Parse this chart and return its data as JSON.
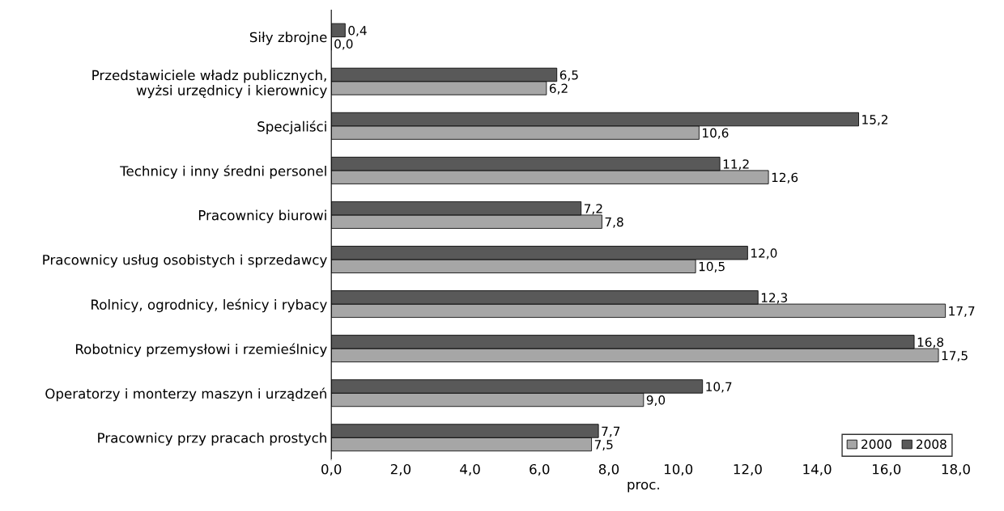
{
  "chart_data": {
    "type": "bar",
    "orientation": "horizontal",
    "xlabel": "proc.",
    "categories": [
      "Siły zbrojne",
      "Przedstawiciele władz publicznych,\nwyżsi urzędnicy i kierownicy",
      "Specjaliści",
      "Technicy i inny średni personel",
      "Pracownicy biurowi",
      "Pracownicy usług osobistych i sprzedawcy",
      "Rolnicy, ogrodnicy, leśnicy i rybacy",
      "Robotnicy przemysłowi i rzemieślnicy",
      "Operatorzy i monterzy maszyn i urządzeń",
      "Pracownicy przy pracach prostych"
    ],
    "series": [
      {
        "name": "2000",
        "color": "#a6a6a6",
        "values": [
          0.0,
          6.2,
          10.6,
          12.6,
          7.8,
          10.5,
          17.7,
          17.5,
          9.0,
          7.5
        ],
        "value_labels": [
          "0,0",
          "6,2",
          "10,6",
          "12,6",
          "7,8",
          "10,5",
          "17,7",
          "17,5",
          "9,0",
          "7,5"
        ]
      },
      {
        "name": "2008",
        "color": "#595959",
        "values": [
          0.4,
          6.5,
          15.2,
          11.2,
          7.2,
          12.0,
          12.3,
          16.8,
          10.7,
          7.7
        ],
        "value_labels": [
          "0,4",
          "6,5",
          "15,2",
          "11,2",
          "7,2",
          "12,0",
          "12,3",
          "16,8",
          "10,7",
          "7,7"
        ]
      }
    ],
    "xlim": [
      0,
      18
    ],
    "xticks": [
      {
        "value": 0,
        "label": "0,0"
      },
      {
        "value": 2,
        "label": "2,0"
      },
      {
        "value": 4,
        "label": "4,0"
      },
      {
        "value": 6,
        "label": "6,0"
      },
      {
        "value": 8,
        "label": "8,0"
      },
      {
        "value": 10,
        "label": "10,0"
      },
      {
        "value": 12,
        "label": "12,0"
      },
      {
        "value": 14,
        "label": "14,0"
      },
      {
        "value": 16,
        "label": "16,0"
      },
      {
        "value": 18,
        "label": "18,0"
      }
    ],
    "grid": false,
    "legend": "bottom right"
  }
}
